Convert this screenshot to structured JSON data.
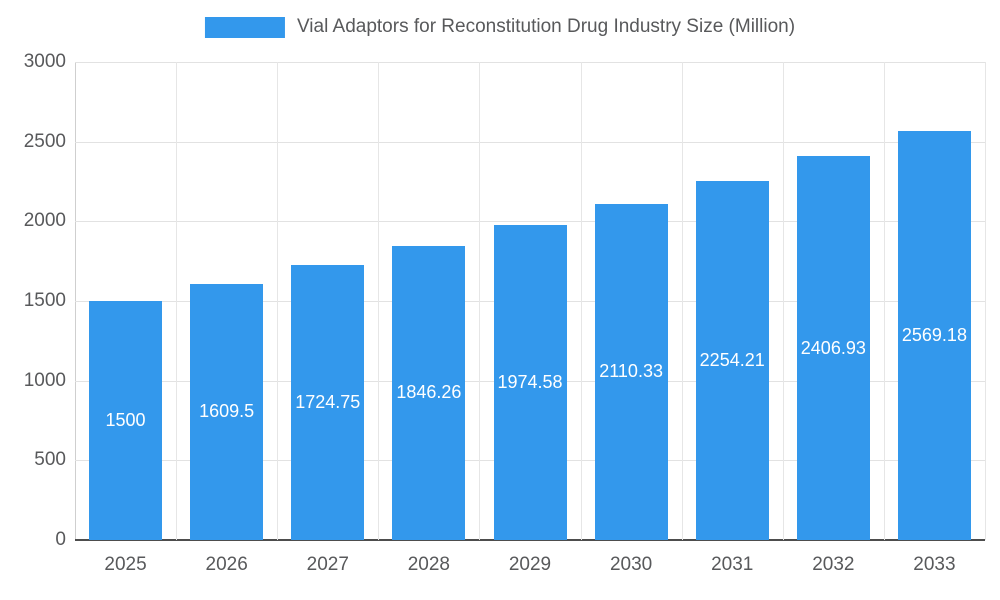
{
  "accent_color": "#3398ec",
  "text_color": "#58595b",
  "legend": {
    "title": "Vial Adaptors for Reconstitution Drug Industry Size (Million)"
  },
  "chart_data": {
    "type": "bar",
    "title": "Vial Adaptors for Reconstitution Drug Industry Size (Million)",
    "categories": [
      "2025",
      "2026",
      "2027",
      "2028",
      "2029",
      "2030",
      "2031",
      "2032",
      "2033"
    ],
    "values": [
      1500,
      1609.5,
      1724.75,
      1846.26,
      1974.58,
      2110.33,
      2254.21,
      2406.93,
      2569.18
    ],
    "bar_labels": [
      "1500",
      "1609.5",
      "1724.75",
      "1846.26",
      "1974.58",
      "2110.33",
      "2254.21",
      "2406.93",
      "2569.18"
    ],
    "xlabel": "",
    "ylabel": "",
    "ylim": [
      0,
      3000
    ],
    "yticks": [
      0,
      500,
      1000,
      1500,
      2000,
      2500,
      3000
    ],
    "grid": true,
    "legend_position": "top",
    "bar_color": "#3398ec",
    "bar_label_color": "#ffffff",
    "axis_text_color": "#58595b"
  }
}
